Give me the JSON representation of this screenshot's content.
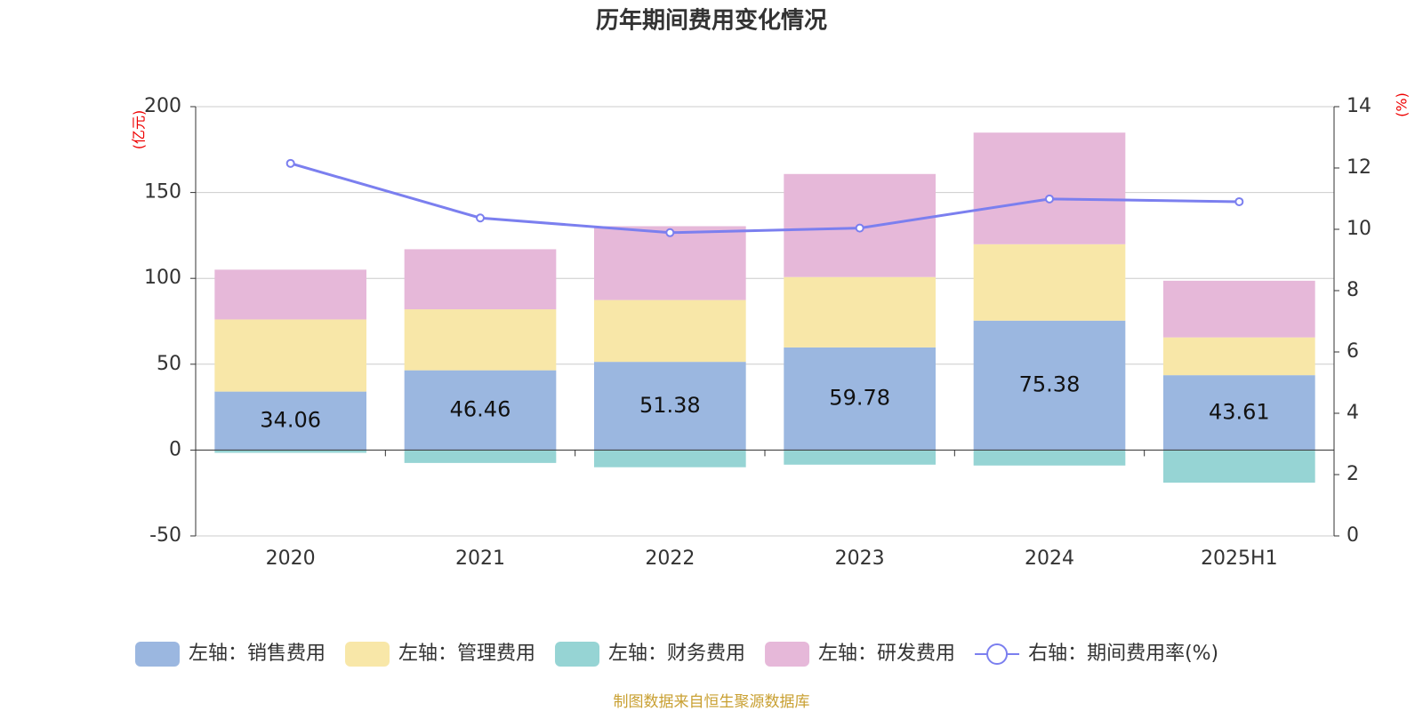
{
  "chart_data": {
    "type": "bar",
    "title": "历年期间费用变化情况",
    "y_label": "(亿元)",
    "y2_label": "(%)",
    "categories": [
      "2020",
      "2021",
      "2022",
      "2023",
      "2024",
      "2025H1"
    ],
    "series": [
      {
        "name": "左轴：销售费用",
        "color": "#9bb7e0",
        "values": [
          34.06,
          46.46,
          51.38,
          59.78,
          75.38,
          43.61
        ],
        "data_labels": true
      },
      {
        "name": "左轴：管理费用",
        "color": "#f8e7a8",
        "values": [
          42,
          35.5,
          36,
          41,
          44.5,
          22
        ]
      },
      {
        "name": "左轴：财务费用",
        "color": "#96d4d4",
        "values": [
          -1.6,
          -7.5,
          -10,
          -8.5,
          -9,
          -19
        ]
      },
      {
        "name": "左轴：研发费用",
        "color": "#e6b8d9",
        "values": [
          29,
          35,
          43,
          60,
          65,
          33
        ]
      },
      {
        "name": "右轴：期间费用率(%)",
        "type": "line",
        "axis": "y2",
        "color": "#7b7fef",
        "values": [
          12.15,
          10.37,
          9.89,
          10.04,
          10.99,
          10.9
        ]
      }
    ],
    "ylim": [
      -50,
      200
    ],
    "yticks": [
      -50,
      0,
      50,
      100,
      150,
      200
    ],
    "y2lim": [
      0,
      14
    ],
    "y2ticks": [
      0,
      2,
      4,
      6,
      8,
      10,
      12,
      14
    ],
    "grid": true,
    "source": "制图数据来自恒生聚源数据库"
  }
}
